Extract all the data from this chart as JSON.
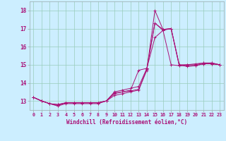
{
  "xlabel": "Windchill (Refroidissement éolien,°C)",
  "bg_color": "#cceeff",
  "grid_color": "#99ccbb",
  "line_color": "#aa1177",
  "spine_color": "#99aaaa",
  "xlim": [
    -0.5,
    23.5
  ],
  "ylim": [
    12.5,
    18.5
  ],
  "xticks": [
    0,
    1,
    2,
    3,
    4,
    5,
    6,
    7,
    8,
    9,
    10,
    11,
    12,
    13,
    14,
    15,
    16,
    17,
    18,
    19,
    20,
    21,
    22,
    23
  ],
  "yticks": [
    13,
    14,
    15,
    16,
    17,
    18
  ],
  "lines": [
    [
      13.2,
      13.0,
      12.85,
      12.72,
      12.85,
      12.85,
      12.85,
      12.85,
      12.85,
      13.0,
      13.3,
      13.4,
      13.5,
      13.6,
      14.7,
      18.0,
      16.95,
      17.0,
      15.0,
      14.9,
      14.95,
      15.05,
      15.1,
      15.0
    ],
    [
      13.2,
      13.0,
      12.85,
      12.75,
      12.9,
      12.9,
      12.9,
      12.9,
      12.9,
      13.0,
      13.4,
      13.5,
      13.6,
      14.7,
      14.8,
      17.3,
      16.9,
      17.0,
      14.95,
      15.0,
      15.05,
      15.1,
      15.05,
      15.0
    ],
    [
      13.2,
      13.0,
      12.85,
      12.8,
      12.9,
      12.9,
      12.9,
      12.9,
      12.9,
      13.0,
      13.45,
      13.5,
      13.55,
      13.65,
      14.75,
      17.3,
      16.95,
      17.0,
      15.0,
      15.0,
      15.0,
      15.1,
      15.1,
      15.0
    ],
    [
      13.2,
      13.0,
      12.85,
      12.8,
      12.9,
      12.9,
      12.9,
      12.9,
      12.9,
      13.0,
      13.5,
      13.6,
      13.7,
      13.8,
      14.8,
      16.5,
      16.9,
      15.0,
      14.95,
      14.95,
      14.95,
      15.05,
      15.05,
      15.0
    ]
  ],
  "xlabel_fontsize": 5.5,
  "ytick_fontsize": 5.5,
  "xtick_fontsize": 4.8
}
